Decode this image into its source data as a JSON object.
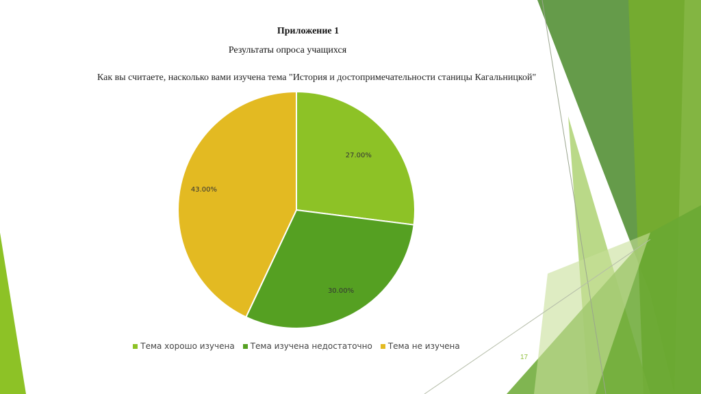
{
  "slide": {
    "title": "Приложение 1",
    "subtitle": "Результаты опроса учащихся",
    "page_number": "17"
  },
  "colors": {
    "series": [
      "#8dc226",
      "#55a022",
      "#e3ba22"
    ],
    "deco_green_dark": "#4a8a2a",
    "deco_green_mid": "#76ad2e",
    "deco_green_light": "#a9cf6a"
  },
  "chart_data": {
    "type": "pie",
    "title": "Как вы считаете, насколько вами изучена тема \"История и достопримечательности станицы Кагальницкой\"",
    "categories": [
      "Тема хорошо изучена",
      "Тема изучена недостаточно",
      "Тема не изучена"
    ],
    "values": [
      27.0,
      30.0,
      43.0
    ],
    "data_labels": [
      "27.00%",
      "30.00%",
      "43.00%"
    ],
    "legend_position": "bottom"
  }
}
